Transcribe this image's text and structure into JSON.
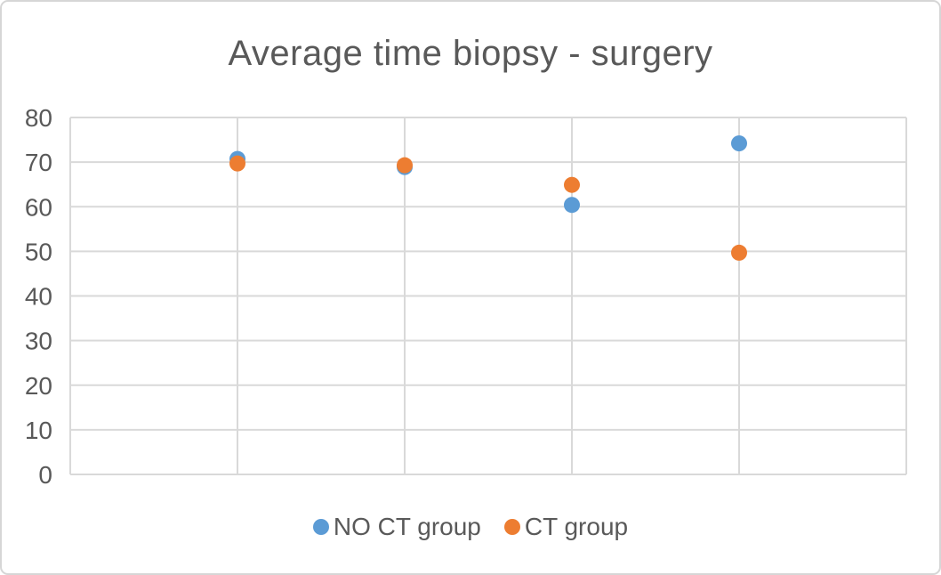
{
  "frame": {
    "background": "#ffffff",
    "border_color": "#d6d6d6"
  },
  "chart_data": {
    "type": "scatter",
    "title": "Average time biopsy - surgery",
    "title_color": "#595959",
    "axis_label_color": "#595959",
    "gridline_color": "#d9d9d9",
    "x": [
      1,
      2,
      3,
      4
    ],
    "series": [
      {
        "name": "NO CT group",
        "color": "#5B9BD5",
        "values": [
          70.7,
          68.9,
          60.4,
          74.2
        ]
      },
      {
        "name": "CT group",
        "color": "#ED7D31",
        "values": [
          69.7,
          69.3,
          64.9,
          49.7
        ]
      }
    ],
    "xlim": [
      0,
      5
    ],
    "ylim": [
      0,
      80
    ],
    "y_ticks": [
      0,
      10,
      20,
      30,
      40,
      50,
      60,
      70,
      80
    ],
    "x_tick_labels_visible": false,
    "grid_horizontal": true,
    "grid_vertical": true,
    "legend_position": "bottom",
    "marker_radius": 9
  }
}
